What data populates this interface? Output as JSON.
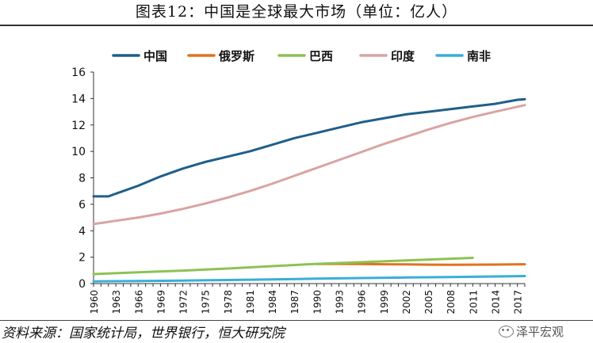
{
  "title": "图表12：中国是全球最大市场（单位：亿人）",
  "source": "资料来源：国家统计局，世界银行，恒大研究院",
  "watermark": "泽平宏观",
  "chart_data": {
    "type": "line",
    "title": "图表12：中国是全球最大市场（单位：亿人）",
    "xlabel": "",
    "ylabel": "",
    "xlim": [
      1960,
      2018
    ],
    "ylim": [
      0,
      16
    ],
    "yticks": [
      0,
      2,
      4,
      6,
      8,
      10,
      12,
      14,
      16
    ],
    "xtick_labels": [
      "1960",
      "1963",
      "1966",
      "1969",
      "1972",
      "1975",
      "1978",
      "1981",
      "1984",
      "1987",
      "1990",
      "1993",
      "1996",
      "1999",
      "2002",
      "2005",
      "2008",
      "2011",
      "2014",
      "2017"
    ],
    "legend_position": "top",
    "series": [
      {
        "name": "中国",
        "color": "#1f5f8b",
        "x": [
          1960,
          1961,
          1962,
          1963,
          1964,
          1966,
          1969,
          1972,
          1975,
          1978,
          1981,
          1984,
          1987,
          1990,
          1993,
          1996,
          1999,
          2002,
          2005,
          2008,
          2011,
          2014,
          2017,
          2018
        ],
        "y": [
          6.6,
          6.6,
          6.6,
          6.8,
          7.0,
          7.4,
          8.1,
          8.7,
          9.2,
          9.6,
          10.0,
          10.5,
          11.0,
          11.4,
          11.8,
          12.2,
          12.5,
          12.8,
          13.0,
          13.2,
          13.4,
          13.6,
          13.9,
          13.95
        ]
      },
      {
        "name": "俄罗斯",
        "color": "#e0731f",
        "x": [
          1990,
          1993,
          1996,
          1999,
          2002,
          2005,
          2008,
          2011,
          2014,
          2018
        ],
        "y": [
          1.48,
          1.49,
          1.48,
          1.46,
          1.45,
          1.43,
          1.42,
          1.43,
          1.44,
          1.46
        ]
      },
      {
        "name": "巴西",
        "color": "#8dc252",
        "x": [
          1960,
          1966,
          1972,
          1978,
          1984,
          1990,
          1996,
          2002,
          2008,
          2011
        ],
        "y": [
          0.72,
          0.85,
          0.98,
          1.14,
          1.32,
          1.49,
          1.62,
          1.75,
          1.88,
          1.95
        ]
      },
      {
        "name": "印度",
        "color": "#d9a3a3",
        "x": [
          1960,
          1963,
          1966,
          1969,
          1972,
          1975,
          1978,
          1981,
          1984,
          1987,
          1990,
          1993,
          1996,
          1999,
          2002,
          2005,
          2008,
          2011,
          2014,
          2018
        ],
        "y": [
          4.5,
          4.75,
          5.0,
          5.3,
          5.65,
          6.05,
          6.5,
          7.0,
          7.55,
          8.15,
          8.75,
          9.35,
          9.95,
          10.55,
          11.1,
          11.65,
          12.15,
          12.6,
          13.0,
          13.5
        ]
      },
      {
        "name": "南非",
        "color": "#3aaed8",
        "x": [
          1960,
          1966,
          1972,
          1978,
          1984,
          1990,
          1996,
          2002,
          2008,
          2014,
          2018
        ],
        "y": [
          0.17,
          0.2,
          0.23,
          0.27,
          0.31,
          0.37,
          0.42,
          0.46,
          0.5,
          0.54,
          0.57
        ]
      }
    ]
  }
}
